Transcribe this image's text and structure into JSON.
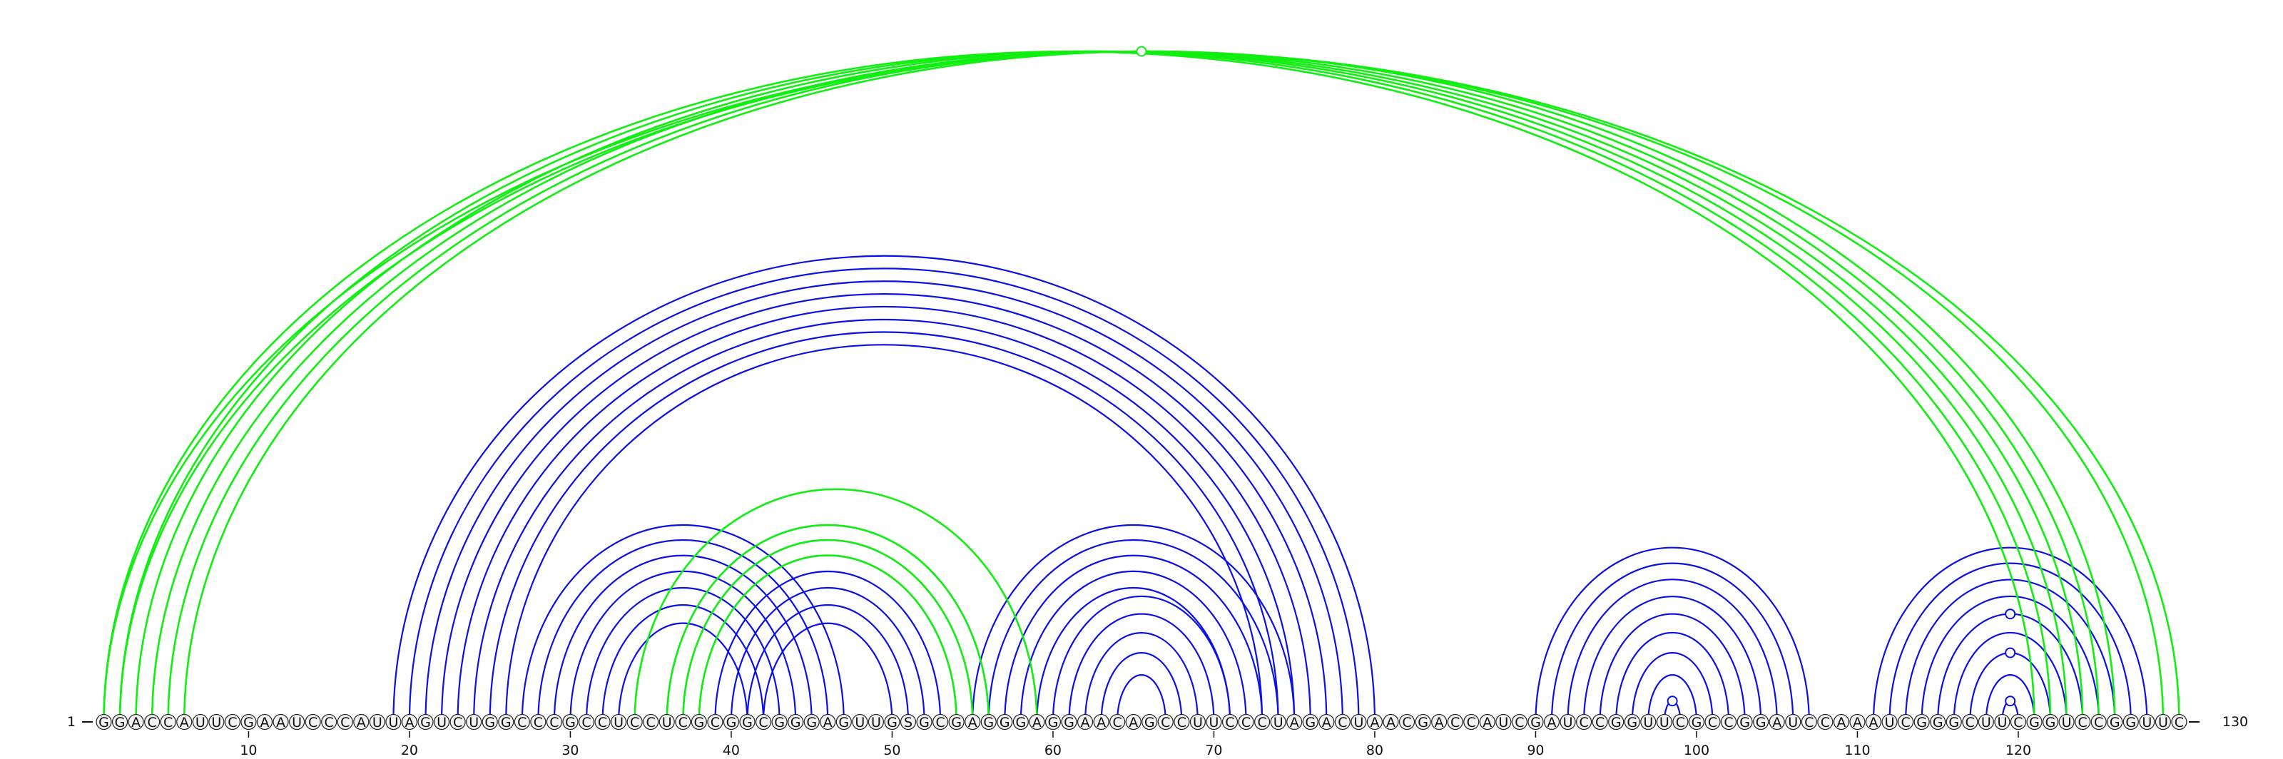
{
  "sequence": "GGACCAUUCGAAUCCCAUUAGUCUGGCCCGCCUCCUCGCGGCGGGAGUUGSGCGAGGGAGGAACAGCCUUCCCUAGACUAACGACCAUCGAUCCGGUUCGCCGGAUCCAAAUCGGGCUUCGGUCCGGUUC",
  "ends": {
    "start": "1",
    "end": "130"
  },
  "ticks": [
    {
      "pos": 10,
      "label": "10"
    },
    {
      "pos": 20,
      "label": "20"
    },
    {
      "pos": 30,
      "label": "30"
    },
    {
      "pos": 40,
      "label": "40"
    },
    {
      "pos": 50,
      "label": "50"
    },
    {
      "pos": 60,
      "label": "60"
    },
    {
      "pos": 70,
      "label": "70"
    },
    {
      "pos": 80,
      "label": "80"
    },
    {
      "pos": 90,
      "label": "90"
    },
    {
      "pos": 100,
      "label": "100"
    },
    {
      "pos": 110,
      "label": "110"
    },
    {
      "pos": 120,
      "label": "120"
    }
  ],
  "colors": {
    "nested": "#0a10e6",
    "crossing": "#11ee11",
    "circle_fill": "#f2f2f2",
    "circle_stroke": "#222222"
  },
  "helices": [
    {
      "color": "nested",
      "pairs": [
        [
          19,
          80
        ],
        [
          20,
          79
        ],
        [
          21,
          78
        ],
        [
          22,
          77
        ],
        [
          23,
          76
        ],
        [
          24,
          75
        ],
        [
          25,
          74
        ],
        [
          26,
          73
        ]
      ]
    },
    {
      "color": "nested",
      "pairs": [
        [
          27,
          47
        ],
        [
          28,
          46
        ],
        [
          29,
          45
        ],
        [
          30,
          44
        ],
        [
          31,
          43
        ],
        [
          32,
          42
        ],
        [
          33,
          41
        ]
      ]
    },
    {
      "color": "nested",
      "pairs": [
        [
          36,
          56
        ],
        [
          37,
          55
        ],
        [
          38,
          54
        ],
        [
          39,
          53
        ],
        [
          40,
          52
        ],
        [
          41,
          51
        ],
        [
          42,
          50
        ]
      ]
    },
    {
      "color": "nested",
      "pairs": [
        [
          55,
          75
        ],
        [
          56,
          74
        ],
        [
          57,
          73
        ],
        [
          58,
          72
        ],
        [
          59,
          71
        ]
      ]
    },
    {
      "color": "nested",
      "pairs": [
        [
          60,
          71
        ],
        [
          61,
          70
        ],
        [
          62,
          69
        ],
        [
          63,
          68
        ],
        [
          64,
          67
        ]
      ]
    },
    {
      "color": "nested",
      "pairs": [
        [
          90,
          107
        ],
        [
          91,
          106
        ],
        [
          92,
          105
        ],
        [
          93,
          104
        ],
        [
          94,
          103
        ],
        [
          95,
          102
        ],
        [
          96,
          101
        ],
        [
          97,
          100
        ],
        [
          98,
          99
        ]
      ]
    },
    {
      "color": "nested",
      "pairs": [
        [
          111,
          128
        ],
        [
          112,
          127
        ],
        [
          113,
          126
        ],
        [
          114,
          125
        ],
        [
          115,
          124
        ],
        [
          116,
          123
        ],
        [
          117,
          122
        ],
        [
          118,
          121
        ],
        [
          119,
          120
        ]
      ]
    },
    {
      "color": "crossing",
      "pairs": [
        [
          34,
          59
        ],
        [
          36,
          56
        ],
        [
          37,
          55
        ],
        [
          38,
          54
        ]
      ]
    },
    {
      "color": "crossing",
      "pairs": [
        [
          1,
          121
        ],
        [
          2,
          122
        ],
        [
          3,
          123
        ],
        [
          4,
          124
        ],
        [
          5,
          125
        ],
        [
          6,
          126
        ]
      ]
    },
    {
      "color": "crossing",
      "pairs": [
        [
          1,
          130
        ],
        [
          2,
          129
        ]
      ]
    }
  ],
  "markers": [
    {
      "color": "crossing",
      "pos": 65.5,
      "span": 129
    },
    {
      "color": "nested",
      "pos": 98.5,
      "span": 1
    },
    {
      "color": "nested",
      "pos": 119.5,
      "span": 1
    },
    {
      "color": "nested",
      "pos": 119.5,
      "span": 5
    },
    {
      "color": "nested",
      "pos": 119.5,
      "span": 9
    }
  ]
}
